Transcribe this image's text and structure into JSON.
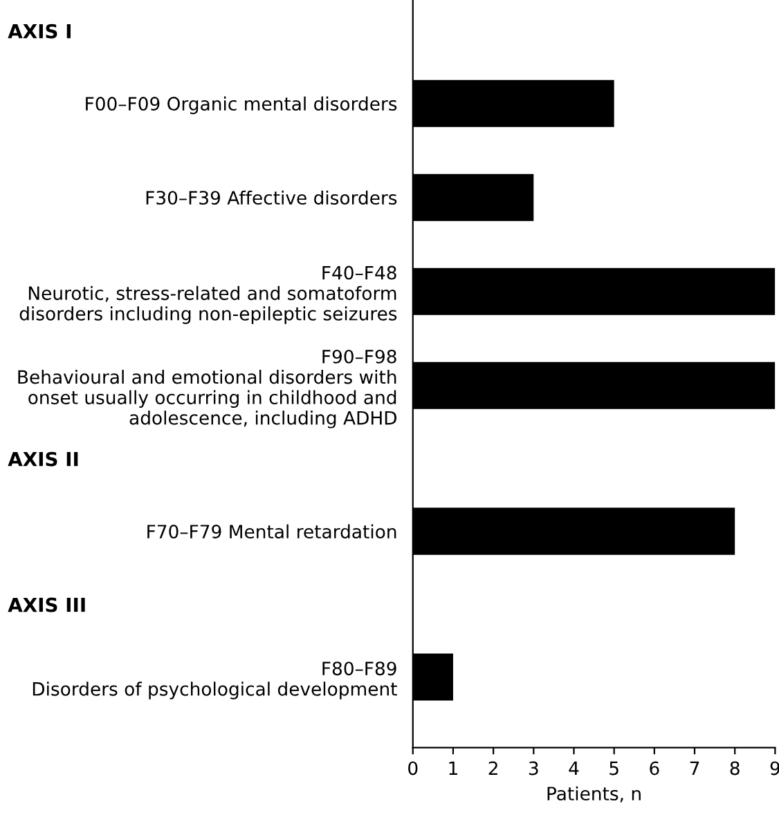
{
  "chart_data": {
    "type": "bar",
    "orientation": "horizontal",
    "categories": [
      "F00–F09 Organic mental disorders",
      "F30–F39 Affective disorders",
      "F40–F48\nNeurotic, stress-related and somatoform\ndisorders including non-epileptic seizures",
      "F90–F98\nBehavioural and emotional disorders with\nonset usually occurring in childhood and\nadolescence, including ADHD",
      "F70–F79 Mental retardation",
      "F80–F89\nDisorders of psychological development"
    ],
    "values": [
      5,
      3,
      9,
      9,
      8,
      1
    ],
    "color": "#000000",
    "xlim": [
      0,
      9
    ],
    "xticks": [
      0,
      1,
      2,
      3,
      4,
      5,
      6,
      7,
      8,
      9
    ],
    "xlabel": "Patients, n",
    "annotations": [
      "AXIS I",
      "AXIS II",
      "AXIS III"
    ],
    "grid": false
  }
}
